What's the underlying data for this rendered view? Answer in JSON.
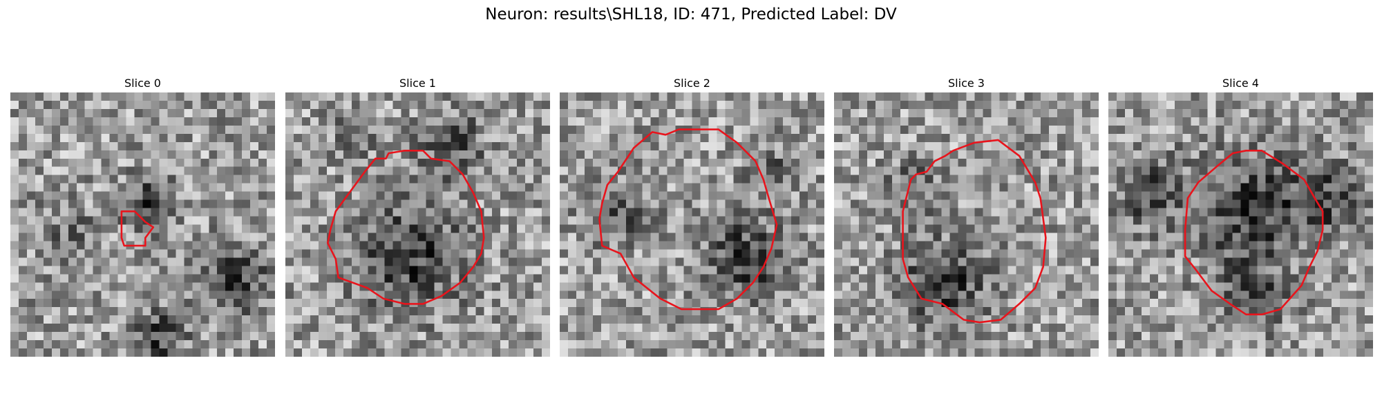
{
  "figure": {
    "title": "Neuron: results\\SHL18, ID: 471, Predicted Label: DV"
  },
  "contour_color": "#e8141c",
  "colormap": "gray",
  "slices": [
    {
      "title": "Slice 0",
      "seed": 11,
      "dark_blobs": [
        [
          0.52,
          0.42,
          0.1,
          0.9
        ],
        [
          0.84,
          0.7,
          0.13,
          1.0
        ],
        [
          0.56,
          0.93,
          0.1,
          1.0
        ],
        [
          0.22,
          0.55,
          0.12,
          0.5
        ]
      ],
      "contour": [
        [
          0.42,
          0.45
        ],
        [
          0.47,
          0.45
        ],
        [
          0.51,
          0.49
        ],
        [
          0.54,
          0.51
        ],
        [
          0.51,
          0.55
        ],
        [
          0.51,
          0.58
        ],
        [
          0.48,
          0.58
        ],
        [
          0.43,
          0.58
        ],
        [
          0.42,
          0.55
        ]
      ]
    },
    {
      "title": "Slice 1",
      "seed": 23,
      "dark_blobs": [
        [
          0.47,
          0.62,
          0.2,
          1.0
        ],
        [
          0.63,
          0.2,
          0.12,
          0.8
        ],
        [
          0.26,
          0.16,
          0.08,
          0.6
        ]
      ],
      "contour": [
        [
          0.3,
          0.3
        ],
        [
          0.34,
          0.25
        ],
        [
          0.38,
          0.25
        ],
        [
          0.39,
          0.23
        ],
        [
          0.45,
          0.22
        ],
        [
          0.52,
          0.22
        ],
        [
          0.55,
          0.25
        ],
        [
          0.62,
          0.26
        ],
        [
          0.67,
          0.31
        ],
        [
          0.71,
          0.38
        ],
        [
          0.74,
          0.45
        ],
        [
          0.75,
          0.55
        ],
        [
          0.74,
          0.61
        ],
        [
          0.71,
          0.66
        ],
        [
          0.66,
          0.72
        ],
        [
          0.59,
          0.77
        ],
        [
          0.52,
          0.8
        ],
        [
          0.45,
          0.8
        ],
        [
          0.37,
          0.78
        ],
        [
          0.31,
          0.74
        ],
        [
          0.2,
          0.7
        ],
        [
          0.19,
          0.63
        ],
        [
          0.16,
          0.57
        ],
        [
          0.17,
          0.52
        ],
        [
          0.19,
          0.45
        ]
      ]
    },
    {
      "title": "Slice 2",
      "seed": 37,
      "dark_blobs": [
        [
          0.7,
          0.63,
          0.15,
          1.0
        ],
        [
          0.22,
          0.45,
          0.12,
          0.7
        ],
        [
          0.8,
          0.3,
          0.1,
          0.6
        ]
      ],
      "contour": [
        [
          0.22,
          0.3
        ],
        [
          0.28,
          0.21
        ],
        [
          0.35,
          0.15
        ],
        [
          0.4,
          0.16
        ],
        [
          0.45,
          0.14
        ],
        [
          0.6,
          0.14
        ],
        [
          0.67,
          0.19
        ],
        [
          0.74,
          0.26
        ],
        [
          0.77,
          0.33
        ],
        [
          0.79,
          0.4
        ],
        [
          0.82,
          0.5
        ],
        [
          0.8,
          0.59
        ],
        [
          0.77,
          0.66
        ],
        [
          0.73,
          0.72
        ],
        [
          0.67,
          0.78
        ],
        [
          0.6,
          0.82
        ],
        [
          0.46,
          0.82
        ],
        [
          0.38,
          0.78
        ],
        [
          0.28,
          0.7
        ],
        [
          0.23,
          0.61
        ],
        [
          0.16,
          0.58
        ],
        [
          0.15,
          0.48
        ],
        [
          0.16,
          0.42
        ],
        [
          0.18,
          0.35
        ]
      ]
    },
    {
      "title": "Slice 3",
      "seed": 53,
      "dark_blobs": [
        [
          0.42,
          0.72,
          0.16,
          1.0
        ],
        [
          0.3,
          0.35,
          0.1,
          0.6
        ]
      ],
      "contour": [
        [
          0.29,
          0.33
        ],
        [
          0.31,
          0.31
        ],
        [
          0.35,
          0.3
        ],
        [
          0.38,
          0.26
        ],
        [
          0.42,
          0.24
        ],
        [
          0.45,
          0.22
        ],
        [
          0.53,
          0.19
        ],
        [
          0.62,
          0.18
        ],
        [
          0.7,
          0.24
        ],
        [
          0.76,
          0.34
        ],
        [
          0.78,
          0.4
        ],
        [
          0.8,
          0.55
        ],
        [
          0.79,
          0.66
        ],
        [
          0.76,
          0.74
        ],
        [
          0.7,
          0.8
        ],
        [
          0.63,
          0.86
        ],
        [
          0.55,
          0.87
        ],
        [
          0.49,
          0.86
        ],
        [
          0.41,
          0.8
        ],
        [
          0.33,
          0.78
        ],
        [
          0.28,
          0.7
        ],
        [
          0.26,
          0.63
        ],
        [
          0.26,
          0.45
        ]
      ]
    },
    {
      "title": "Slice 4",
      "seed": 71,
      "dark_blobs": [
        [
          0.55,
          0.45,
          0.22,
          1.0
        ],
        [
          0.15,
          0.38,
          0.13,
          0.8
        ],
        [
          0.83,
          0.4,
          0.12,
          0.8
        ],
        [
          0.55,
          0.78,
          0.12,
          0.7
        ]
      ],
      "contour": [
        [
          0.3,
          0.4
        ],
        [
          0.34,
          0.34
        ],
        [
          0.41,
          0.28
        ],
        [
          0.47,
          0.23
        ],
        [
          0.52,
          0.22
        ],
        [
          0.58,
          0.22
        ],
        [
          0.66,
          0.27
        ],
        [
          0.74,
          0.33
        ],
        [
          0.78,
          0.4
        ],
        [
          0.81,
          0.45
        ],
        [
          0.81,
          0.52
        ],
        [
          0.79,
          0.6
        ],
        [
          0.76,
          0.66
        ],
        [
          0.73,
          0.73
        ],
        [
          0.65,
          0.82
        ],
        [
          0.58,
          0.84
        ],
        [
          0.52,
          0.84
        ],
        [
          0.46,
          0.8
        ],
        [
          0.39,
          0.75
        ],
        [
          0.33,
          0.67
        ],
        [
          0.29,
          0.62
        ],
        [
          0.29,
          0.52
        ]
      ]
    }
  ]
}
